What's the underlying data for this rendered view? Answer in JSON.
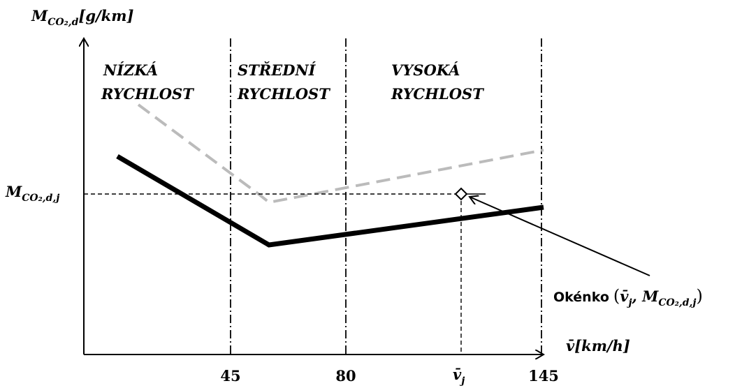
{
  "y_axis": {
    "symbol": "M",
    "subscript": "CO₂,d",
    "unit": "[g/km]"
  },
  "x_axis": {
    "symbol": "v̄",
    "unit": "[km/h]"
  },
  "x_ticks": [
    "45",
    "80",
    "145"
  ],
  "x_marker": {
    "symbol": "v̄",
    "subscript": "j"
  },
  "y_marker": {
    "symbol": "M",
    "subscript": "CO₂,d,j"
  },
  "zones": [
    {
      "line1": "NÍZKÁ",
      "line2": "RYCHLOST"
    },
    {
      "line1": "STŘEDNÍ",
      "line2": "RYCHLOST"
    },
    {
      "line1": "VYSOKÁ",
      "line2": "RYCHLOST"
    }
  ],
  "annotation": {
    "text": "Okénko",
    "open": "(",
    "v": "v̄",
    "v_sub": "j",
    "sep": ", ",
    "m": "M",
    "m_sub": "CO₂,d,j",
    "close": ")"
  }
}
